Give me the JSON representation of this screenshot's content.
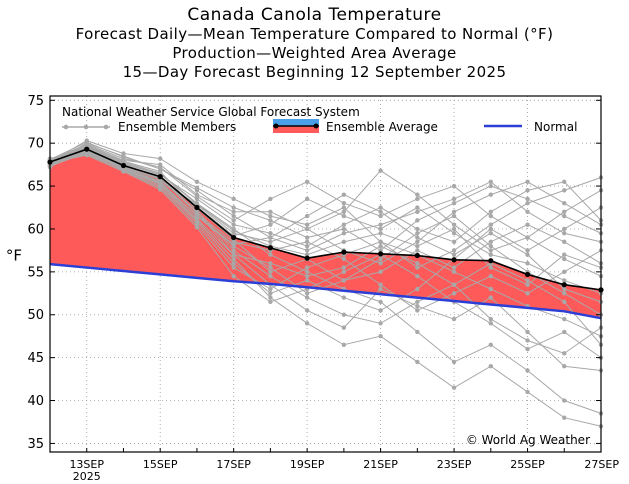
{
  "chart_data": {
    "type": "line",
    "title": "Canada Canola Temperature",
    "subtitles": [
      "Forecast Daily—Mean Temperature Compared to Normal (°F)",
      "Production—Weighted Area Average",
      "15—Day Forecast Beginning 12 September 2025"
    ],
    "ylabel": "°F",
    "xlabel": "",
    "ylim": [
      34,
      75.5
    ],
    "xlim": [
      0,
      15
    ],
    "yticks": [
      35,
      40,
      45,
      50,
      55,
      60,
      65,
      70,
      75
    ],
    "xticks": [
      {
        "x": 1,
        "label": "13SEP",
        "sublabel": "2025"
      },
      {
        "x": 3,
        "label": "15SEP",
        "sublabel": ""
      },
      {
        "x": 5,
        "label": "17SEP",
        "sublabel": ""
      },
      {
        "x": 7,
        "label": "19SEP",
        "sublabel": ""
      },
      {
        "x": 9,
        "label": "21SEP",
        "sublabel": ""
      },
      {
        "x": 11,
        "label": "23SEP",
        "sublabel": ""
      },
      {
        "x": 13,
        "label": "25SEP",
        "sublabel": ""
      },
      {
        "x": 15,
        "label": "27SEP",
        "sublabel": ""
      }
    ],
    "grid": true,
    "legend": {
      "title": "National Weather Service Global Forecast System",
      "placement": "top-left",
      "entries": [
        {
          "name": "Ensemble Members",
          "style": "member"
        },
        {
          "name": "Ensemble Average",
          "style": "average"
        },
        {
          "name": "Normal",
          "style": "normal"
        }
      ]
    },
    "x": [
      0,
      1,
      2,
      3,
      4,
      5,
      6,
      7,
      8,
      9,
      10,
      11,
      12,
      13,
      14,
      15
    ],
    "ensemble_average": [
      67.8,
      69.3,
      67.4,
      66.1,
      62.5,
      59.0,
      57.8,
      56.6,
      57.3,
      57.1,
      56.9,
      56.4,
      56.3,
      54.7,
      53.5,
      52.9
    ],
    "normal": [
      55.9,
      55.5,
      55.1,
      54.7,
      54.3,
      53.9,
      53.6,
      53.2,
      52.8,
      52.4,
      52.0,
      51.6,
      51.2,
      50.8,
      50.4,
      49.6
    ],
    "ensemble_members": [
      [
        67.5,
        70.0,
        68.5,
        67.0,
        64.5,
        61.5,
        59.0,
        57.5,
        59.5,
        60.5,
        62.0,
        63.5,
        65.5,
        62.0,
        59.5,
        58.5
      ],
      [
        67.8,
        70.3,
        68.8,
        68.2,
        65.5,
        63.5,
        61.5,
        60.5,
        62.5,
        58.5,
        55.5,
        57.5,
        60.5,
        63.0,
        64.5,
        66.0
      ],
      [
        68.0,
        69.0,
        67.0,
        65.5,
        61.5,
        58.0,
        55.5,
        52.5,
        54.0,
        56.5,
        59.5,
        61.5,
        58.0,
        55.0,
        52.5,
        50.0
      ],
      [
        67.2,
        69.5,
        67.5,
        66.0,
        62.0,
        57.0,
        53.5,
        50.5,
        48.5,
        53.0,
        51.0,
        49.5,
        52.0,
        48.0,
        44.0,
        43.5
      ],
      [
        67.6,
        68.8,
        67.2,
        65.8,
        62.8,
        59.5,
        58.5,
        60.0,
        62.0,
        66.8,
        64.0,
        60.5,
        57.5,
        59.0,
        62.0,
        64.5
      ],
      [
        68.1,
        69.6,
        67.8,
        66.5,
        63.0,
        60.0,
        57.0,
        55.0,
        53.0,
        51.5,
        48.0,
        44.5,
        46.5,
        43.5,
        40.0,
        38.5
      ],
      [
        67.4,
        69.2,
        67.0,
        65.2,
        61.0,
        56.5,
        52.0,
        49.0,
        46.5,
        47.5,
        44.5,
        41.5,
        44.0,
        41.0,
        38.0,
        37.0
      ],
      [
        67.9,
        69.8,
        68.0,
        67.5,
        64.0,
        62.0,
        62.0,
        60.0,
        57.5,
        56.0,
        58.5,
        62.0,
        64.0,
        65.5,
        63.0,
        60.5
      ],
      [
        67.3,
        68.9,
        66.8,
        64.8,
        60.5,
        55.5,
        53.0,
        55.5,
        57.0,
        58.5,
        57.0,
        55.0,
        53.0,
        51.0,
        49.5,
        47.5
      ],
      [
        67.7,
        69.4,
        67.6,
        66.3,
        63.5,
        60.5,
        59.5,
        58.0,
        60.5,
        62.5,
        60.0,
        58.5,
        62.0,
        64.5,
        65.5,
        61.0
      ],
      [
        68.2,
        69.1,
        67.3,
        65.9,
        61.8,
        58.5,
        57.5,
        58.5,
        56.5,
        53.5,
        50.5,
        52.5,
        54.5,
        52.5,
        55.0,
        57.5
      ],
      [
        67.5,
        69.7,
        67.9,
        66.7,
        62.2,
        57.5,
        54.5,
        52.0,
        50.0,
        49.0,
        51.5,
        53.5,
        49.5,
        47.0,
        45.5,
        48.5
      ],
      [
        67.8,
        69.3,
        67.1,
        65.6,
        62.6,
        59.2,
        60.5,
        63.5,
        61.5,
        60.0,
        62.5,
        59.5,
        57.0,
        56.0,
        54.0,
        52.5
      ],
      [
        67.6,
        68.7,
        66.9,
        65.0,
        60.8,
        56.0,
        52.5,
        54.0,
        52.0,
        50.5,
        53.0,
        56.5,
        60.0,
        57.5,
        60.0,
        62.5
      ],
      [
        68.0,
        69.9,
        68.2,
        67.2,
        63.8,
        61.0,
        63.5,
        65.5,
        63.0,
        61.5,
        63.5,
        65.0,
        61.5,
        59.0,
        56.5,
        54.5
      ],
      [
        67.4,
        69.0,
        67.2,
        65.4,
        61.2,
        57.0,
        56.0,
        54.5,
        55.5,
        58.0,
        56.0,
        53.5,
        56.0,
        54.0,
        51.5,
        46.5
      ],
      [
        67.9,
        69.5,
        67.7,
        66.4,
        62.9,
        59.8,
        58.0,
        57.0,
        58.5,
        59.5,
        58.0,
        60.0,
        55.5,
        53.5,
        57.0,
        55.5
      ],
      [
        67.7,
        68.6,
        66.7,
        64.6,
        60.2,
        54.5,
        51.5,
        53.0,
        55.0,
        57.0,
        54.5,
        51.5,
        49.0,
        46.0,
        48.0,
        45.0
      ],
      [
        68.1,
        70.1,
        68.4,
        67.0,
        64.8,
        62.5,
        61.0,
        59.0,
        60.0,
        57.5,
        61.0,
        63.0,
        65.0,
        63.5,
        61.5,
        59.5
      ],
      [
        67.5,
        69.3,
        67.5,
        66.0,
        62.4,
        58.8,
        55.0,
        56.5,
        54.0,
        55.0,
        57.5,
        55.5,
        58.5,
        60.5,
        58.5,
        56.0
      ],
      [
        67.8,
        69.0,
        67.0,
        65.3,
        61.6,
        58.2,
        59.0,
        61.5,
        64.0,
        62.0,
        59.0,
        57.0,
        59.5,
        57.0,
        53.0,
        51.5
      ]
    ]
  },
  "watermark": "© World Ag Weather",
  "colors": {
    "background": "#ffffff",
    "member": "#a8a8a8",
    "area_above_normal": "#ff5a5a",
    "area_below_normal": "#4aa0e8",
    "normal": "#2b3fd6",
    "average": "#000000"
  }
}
